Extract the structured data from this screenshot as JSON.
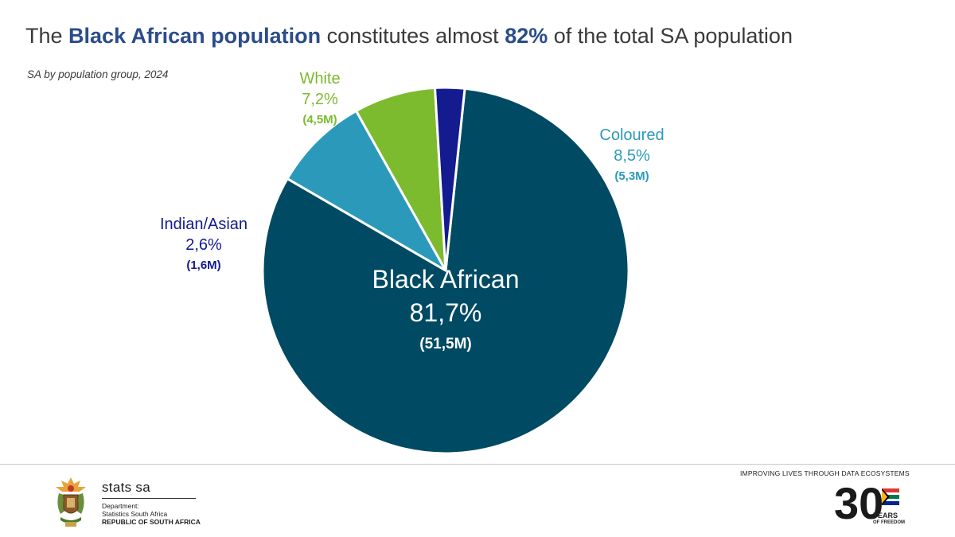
{
  "header": {
    "title_parts": [
      "The ",
      "Black African population",
      " constitutes almost ",
      "82%",
      " of the total SA population"
    ],
    "subtitle": "SA by population group, 2024"
  },
  "chart_data": {
    "type": "pie",
    "title": "The Black African population constitutes almost 82% of the total SA population",
    "subtitle": "SA by population group, 2024",
    "slices": [
      {
        "name": "Black African",
        "percent": 81.7,
        "pct_label": "81,7%",
        "count_label": "(51,5M)",
        "color": "#004a64"
      },
      {
        "name": "Coloured",
        "percent": 8.5,
        "pct_label": "8,5%",
        "count_label": "(5,3M)",
        "color": "#2b9aba"
      },
      {
        "name": "White",
        "percent": 7.2,
        "pct_label": "7,2%",
        "count_label": "(4,5M)",
        "color": "#7cba2e"
      },
      {
        "name": "Indian/Asian",
        "percent": 2.6,
        "pct_label": "2,6%",
        "count_label": "(1,6M)",
        "color": "#131b8f"
      }
    ]
  },
  "footer": {
    "brand": "stats sa",
    "dept_line1": "Department:",
    "dept_line2": "Statistics South Africa",
    "dept_line3": "REPUBLIC OF SOUTH AFRICA",
    "tagline": "IMPROVING LIVES THROUGH DATA ECOSYSTEMS",
    "logo_number": "30",
    "logo_years": "YEARS",
    "logo_freedom": "OF FREEDOM"
  },
  "colors": {
    "title_highlight": "#2b4c8c",
    "black_african": "#004a64",
    "coloured": "#2b9aba",
    "white": "#7cba2e",
    "indian_asian": "#131b8f"
  }
}
